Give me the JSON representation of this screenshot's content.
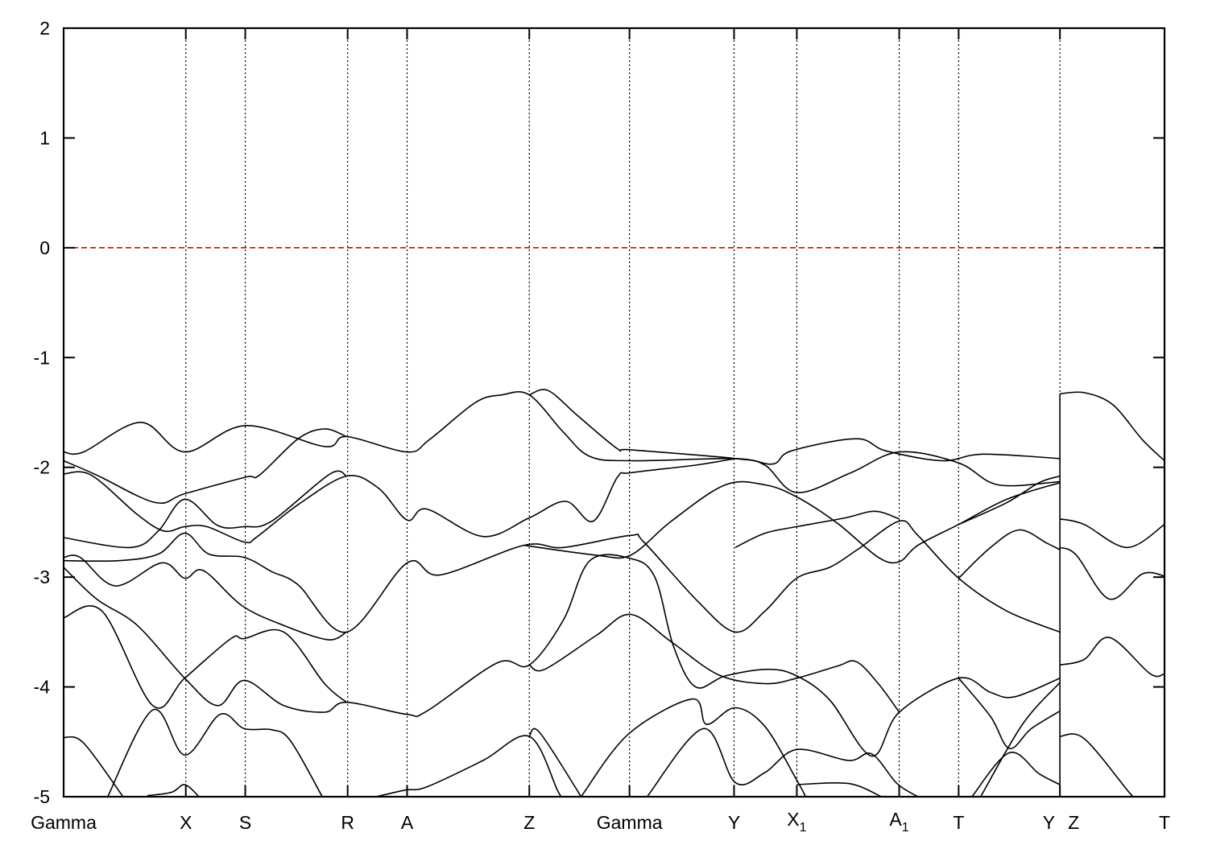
{
  "chart_data": {
    "type": "line",
    "title": "",
    "xlabel": "",
    "ylabel": "",
    "ylim": [
      -5,
      2
    ],
    "yticks": [
      -5,
      -4,
      -3,
      -2,
      -1,
      0,
      1,
      2
    ],
    "ytick_labels": [
      "-5",
      "-4",
      "-3",
      "-2",
      "-1",
      "0",
      "1",
      "2"
    ],
    "xlim": [
      0,
      1
    ],
    "xticks": [
      {
        "k": 0.0,
        "label": "Gamma",
        "sub": ""
      },
      {
        "k": 0.111,
        "label": "X",
        "sub": ""
      },
      {
        "k": 0.165,
        "label": "S",
        "sub": ""
      },
      {
        "k": 0.258,
        "label": "R",
        "sub": ""
      },
      {
        "k": 0.312,
        "label": "A",
        "sub": ""
      },
      {
        "k": 0.423,
        "label": "Z",
        "sub": ""
      },
      {
        "k": 0.514,
        "label": "Gamma",
        "sub": ""
      },
      {
        "k": 0.609,
        "label": "Y",
        "sub": ""
      },
      {
        "k": 0.666,
        "label": "X",
        "sub": "1"
      },
      {
        "k": 0.759,
        "label": "A",
        "sub": "1"
      },
      {
        "k": 0.813,
        "label": "T",
        "sub": ""
      },
      {
        "k": 0.905,
        "label": "Y",
        "sub": "",
        "align": "left-of"
      },
      {
        "k": 0.905,
        "label": "Z",
        "sub": "",
        "align": "right-of"
      },
      {
        "k": 1.0,
        "label": "T",
        "sub": ""
      }
    ],
    "grid": false,
    "vertical_dotted_lines_at_high_symmetry_points": true,
    "fermi_level": {
      "value": 0,
      "color": "#e00000",
      "style": "dashed"
    },
    "band_color": "#000000",
    "bands": [
      [
        [
          0,
          -1.86
        ],
        [
          0.018,
          -1.86
        ],
        [
          0.07,
          -1.59
        ],
        [
          0.11,
          -1.86
        ],
        [
          0.165,
          -1.62
        ],
        [
          0.237,
          -1.81
        ],
        [
          0.257,
          -1.72
        ],
        [
          0.312,
          -1.86
        ],
        [
          0.332,
          -1.75
        ],
        [
          0.374,
          -1.41
        ],
        [
          0.398,
          -1.34
        ],
        [
          0.423,
          -1.34
        ],
        [
          0.454,
          -1.68
        ],
        [
          0.478,
          -1.9
        ],
        [
          0.515,
          -1.94
        ],
        [
          0.61,
          -1.92
        ],
        [
          0.644,
          -1.97
        ],
        [
          0.661,
          -1.85
        ],
        [
          0.72,
          -1.74
        ],
        [
          0.747,
          -1.85
        ],
        [
          0.798,
          -1.94
        ],
        [
          0.835,
          -1.88
        ],
        [
          0.905,
          -1.92
        ]
      ],
      [
        [
          0.423,
          -1.34
        ],
        [
          0.44,
          -1.3
        ],
        [
          0.467,
          -1.53
        ],
        [
          0.503,
          -1.83
        ],
        [
          0.515,
          -1.84
        ],
        [
          0.61,
          -1.92
        ],
        [
          0.637,
          -1.98
        ],
        [
          0.666,
          -2.23
        ],
        [
          0.715,
          -2.05
        ],
        [
          0.759,
          -1.86
        ],
        [
          0.813,
          -1.96
        ],
        [
          0.849,
          -2.16
        ],
        [
          0.905,
          -2.13
        ]
      ],
      [
        [
          0,
          -1.94
        ],
        [
          0.03,
          -2.07
        ],
        [
          0.083,
          -2.32
        ],
        [
          0.11,
          -2.24
        ],
        [
          0.165,
          -2.09
        ],
        [
          0.178,
          -2.07
        ],
        [
          0.213,
          -1.74
        ],
        [
          0.237,
          -1.65
        ],
        [
          0.257,
          -1.72
        ]
      ],
      [
        [
          0,
          -2.06
        ],
        [
          0.025,
          -2.07
        ],
        [
          0.067,
          -2.43
        ],
        [
          0.091,
          -2.58
        ],
        [
          0.11,
          -2.54
        ],
        [
          0.13,
          -2.54
        ],
        [
          0.164,
          -2.68
        ],
        [
          0.176,
          -2.63
        ],
        [
          0.213,
          -2.34
        ],
        [
          0.257,
          -2.08
        ],
        [
          0.286,
          -2.19
        ],
        [
          0.312,
          -2.48
        ],
        [
          0.33,
          -2.38
        ],
        [
          0.381,
          -2.63
        ],
        [
          0.423,
          -2.46
        ],
        [
          0.456,
          -2.31
        ],
        [
          0.481,
          -2.49
        ],
        [
          0.503,
          -2.09
        ],
        [
          0.515,
          -2.05
        ],
        [
          0.574,
          -1.98
        ],
        [
          0.61,
          -1.92
        ]
      ],
      [
        [
          0,
          -2.64
        ],
        [
          0.061,
          -2.73
        ],
        [
          0.086,
          -2.58
        ],
        [
          0.11,
          -2.29
        ],
        [
          0.14,
          -2.53
        ],
        [
          0.164,
          -2.54
        ],
        [
          0.189,
          -2.49
        ],
        [
          0.242,
          -2.06
        ],
        [
          0.257,
          -2.08
        ]
      ],
      [
        [
          0,
          -2.85
        ],
        [
          0.05,
          -2.85
        ],
        [
          0.086,
          -2.79
        ],
        [
          0.11,
          -2.6
        ],
        [
          0.132,
          -2.79
        ],
        [
          0.164,
          -2.82
        ],
        [
          0.189,
          -2.95
        ],
        [
          0.213,
          -3.07
        ],
        [
          0.257,
          -3.5
        ],
        [
          0.312,
          -2.87
        ],
        [
          0.342,
          -2.98
        ],
        [
          0.418,
          -2.71
        ],
        [
          0.454,
          -2.73
        ],
        [
          0.515,
          -2.62
        ],
        [
          0.527,
          -2.68
        ],
        [
          0.576,
          -3.22
        ],
        [
          0.61,
          -3.5
        ],
        [
          0.637,
          -3.31
        ],
        [
          0.666,
          -3.01
        ],
        [
          0.696,
          -2.91
        ],
        [
          0.721,
          -2.75
        ],
        [
          0.759,
          -2.49
        ],
        [
          0.776,
          -2.62
        ],
        [
          0.813,
          -3.01
        ],
        [
          0.857,
          -3.31
        ],
        [
          0.905,
          -3.5
        ]
      ],
      [
        [
          0,
          -2.82
        ],
        [
          0.015,
          -2.82
        ],
        [
          0.047,
          -3.08
        ],
        [
          0.089,
          -2.87
        ],
        [
          0.11,
          -3.01
        ],
        [
          0.127,
          -2.94
        ],
        [
          0.162,
          -3.26
        ],
        [
          0.2,
          -3.44
        ],
        [
          0.24,
          -3.57
        ],
        [
          0.257,
          -3.5
        ]
      ],
      [
        [
          0,
          -2.91
        ],
        [
          0.03,
          -3.2
        ],
        [
          0.067,
          -3.44
        ],
        [
          0.11,
          -3.92
        ],
        [
          0.14,
          -4.17
        ],
        [
          0.164,
          -3.94
        ],
        [
          0.2,
          -4.17
        ],
        [
          0.237,
          -4.23
        ],
        [
          0.257,
          -4.14
        ],
        [
          0.312,
          -4.25
        ],
        [
          0.33,
          -4.22
        ],
        [
          0.394,
          -3.78
        ],
        [
          0.423,
          -3.8
        ],
        [
          0.454,
          -3.39
        ],
        [
          0.478,
          -2.85
        ],
        [
          0.515,
          -2.83
        ],
        [
          0.537,
          -3.0
        ],
        [
          0.554,
          -3.63
        ],
        [
          0.574,
          -4.0
        ],
        [
          0.601,
          -3.9
        ],
        [
          0.64,
          -3.84
        ],
        [
          0.666,
          -3.9
        ],
        [
          0.696,
          -4.12
        ],
        [
          0.734,
          -4.63
        ],
        [
          0.759,
          -4.23
        ],
        [
          0.813,
          -3.92
        ],
        [
          0.842,
          -4.05
        ],
        [
          0.864,
          -4.09
        ],
        [
          0.905,
          -3.92
        ]
      ],
      [
        [
          0,
          -3.37
        ],
        [
          0.035,
          -3.31
        ],
        [
          0.081,
          -4.17
        ],
        [
          0.11,
          -3.92
        ],
        [
          0.152,
          -3.56
        ],
        [
          0.164,
          -3.56
        ],
        [
          0.2,
          -3.5
        ],
        [
          0.237,
          -3.97
        ],
        [
          0.257,
          -4.14
        ]
      ],
      [
        [
          0.04,
          -5
        ],
        [
          0.081,
          -4.21
        ],
        [
          0.11,
          -4.62
        ],
        [
          0.142,
          -4.25
        ],
        [
          0.164,
          -4.38
        ],
        [
          0.189,
          -4.39
        ],
        [
          0.206,
          -4.49
        ],
        [
          0.235,
          -5
        ]
      ],
      [
        [
          0,
          -4.46
        ],
        [
          0.018,
          -4.51
        ],
        [
          0.054,
          -5
        ]
      ],
      [
        [
          0.076,
          -4.99
        ],
        [
          0.098,
          -4.96
        ],
        [
          0.11,
          -4.89
        ],
        [
          0.123,
          -5
        ]
      ],
      [
        [
          0.284,
          -5
        ],
        [
          0.31,
          -4.94
        ],
        [
          0.33,
          -4.91
        ],
        [
          0.381,
          -4.67
        ],
        [
          0.423,
          -4.45
        ],
        [
          0.449,
          -4.95
        ],
        [
          0.453,
          -5
        ]
      ],
      [
        [
          0.423,
          -4.45
        ],
        [
          0.432,
          -4.41
        ],
        [
          0.467,
          -4.95
        ],
        [
          0.469,
          -5
        ]
      ],
      [
        [
          0.47,
          -5
        ],
        [
          0.513,
          -4.43
        ],
        [
          0.571,
          -4.11
        ],
        [
          0.584,
          -4.34
        ],
        [
          0.61,
          -4.19
        ],
        [
          0.637,
          -4.36
        ],
        [
          0.666,
          -4.85
        ],
        [
          0.674,
          -5
        ]
      ],
      [
        [
          0.53,
          -5
        ],
        [
          0.581,
          -4.38
        ],
        [
          0.61,
          -4.87
        ],
        [
          0.637,
          -4.78
        ],
        [
          0.666,
          -4.57
        ],
        [
          0.713,
          -4.67
        ],
        [
          0.734,
          -4.61
        ],
        [
          0.757,
          -4.88
        ],
        [
          0.776,
          -5
        ]
      ],
      [
        [
          0.666,
          -4.89
        ],
        [
          0.713,
          -4.88
        ],
        [
          0.743,
          -5
        ]
      ],
      [
        [
          0.813,
          -3.92
        ],
        [
          0.842,
          -4.27
        ],
        [
          0.859,
          -4.56
        ],
        [
          0.879,
          -4.38
        ],
        [
          0.905,
          -4.22
        ]
      ],
      [
        [
          0.825,
          -5
        ],
        [
          0.859,
          -4.6
        ],
        [
          0.886,
          -4.79
        ],
        [
          0.905,
          -4.89
        ]
      ],
      [
        [
          0.833,
          -5
        ],
        [
          0.871,
          -4.34
        ],
        [
          0.905,
          -3.96
        ]
      ],
      [
        [
          0.418,
          -2.71
        ],
        [
          0.484,
          -2.8
        ],
        [
          0.515,
          -2.8
        ],
        [
          0.552,
          -2.49
        ],
        [
          0.601,
          -2.16
        ],
        [
          0.637,
          -2.16
        ],
        [
          0.666,
          -2.27
        ],
        [
          0.703,
          -2.51
        ],
        [
          0.74,
          -2.82
        ],
        [
          0.759,
          -2.86
        ],
        [
          0.776,
          -2.71
        ],
        [
          0.813,
          -2.52
        ],
        [
          0.857,
          -2.29
        ],
        [
          0.905,
          -2.14
        ]
      ],
      [
        [
          0.813,
          -2.52
        ],
        [
          0.857,
          -2.32
        ],
        [
          0.886,
          -2.14
        ],
        [
          0.905,
          -2.08
        ]
      ],
      [
        [
          0.813,
          -3.01
        ],
        [
          0.842,
          -2.73
        ],
        [
          0.868,
          -2.57
        ],
        [
          0.893,
          -2.69
        ],
        [
          0.905,
          -2.75
        ]
      ],
      [
        [
          0.61,
          -2.73
        ],
        [
          0.637,
          -2.6
        ],
        [
          0.666,
          -2.54
        ],
        [
          0.71,
          -2.46
        ],
        [
          0.737,
          -2.4
        ],
        [
          0.759,
          -2.47
        ]
      ],
      [
        [
          0.423,
          -3.8
        ],
        [
          0.437,
          -3.84
        ],
        [
          0.484,
          -3.53
        ],
        [
          0.515,
          -3.34
        ],
        [
          0.552,
          -3.59
        ],
        [
          0.595,
          -3.89
        ],
        [
          0.637,
          -3.97
        ],
        [
          0.666,
          -3.92
        ],
        [
          0.703,
          -3.81
        ],
        [
          0.72,
          -3.77
        ],
        [
          0.74,
          -3.97
        ],
        [
          0.759,
          -4.23
        ]
      ],
      [
        [
          0.905,
          -1.33
        ],
        [
          0.927,
          -1.32
        ],
        [
          0.953,
          -1.43
        ],
        [
          0.98,
          -1.75
        ],
        [
          1,
          -1.94
        ]
      ],
      [
        [
          0.905,
          -2.47
        ],
        [
          0.927,
          -2.52
        ],
        [
          0.966,
          -2.73
        ],
        [
          1,
          -2.52
        ]
      ],
      [
        [
          0.905,
          -2.73
        ],
        [
          0.92,
          -2.8
        ],
        [
          0.95,
          -3.2
        ],
        [
          0.98,
          -2.97
        ],
        [
          1,
          -2.99
        ]
      ],
      [
        [
          0.905,
          -3.8
        ],
        [
          0.927,
          -3.75
        ],
        [
          0.95,
          -3.55
        ],
        [
          0.987,
          -3.88
        ],
        [
          1,
          -3.88
        ]
      ],
      [
        [
          0.905,
          -4.45
        ],
        [
          0.927,
          -4.47
        ],
        [
          0.967,
          -4.95
        ],
        [
          0.972,
          -5
        ]
      ],
      [
        [
          0.905,
          -1.33
        ],
        [
          0.905,
          -5
        ]
      ]
    ]
  }
}
